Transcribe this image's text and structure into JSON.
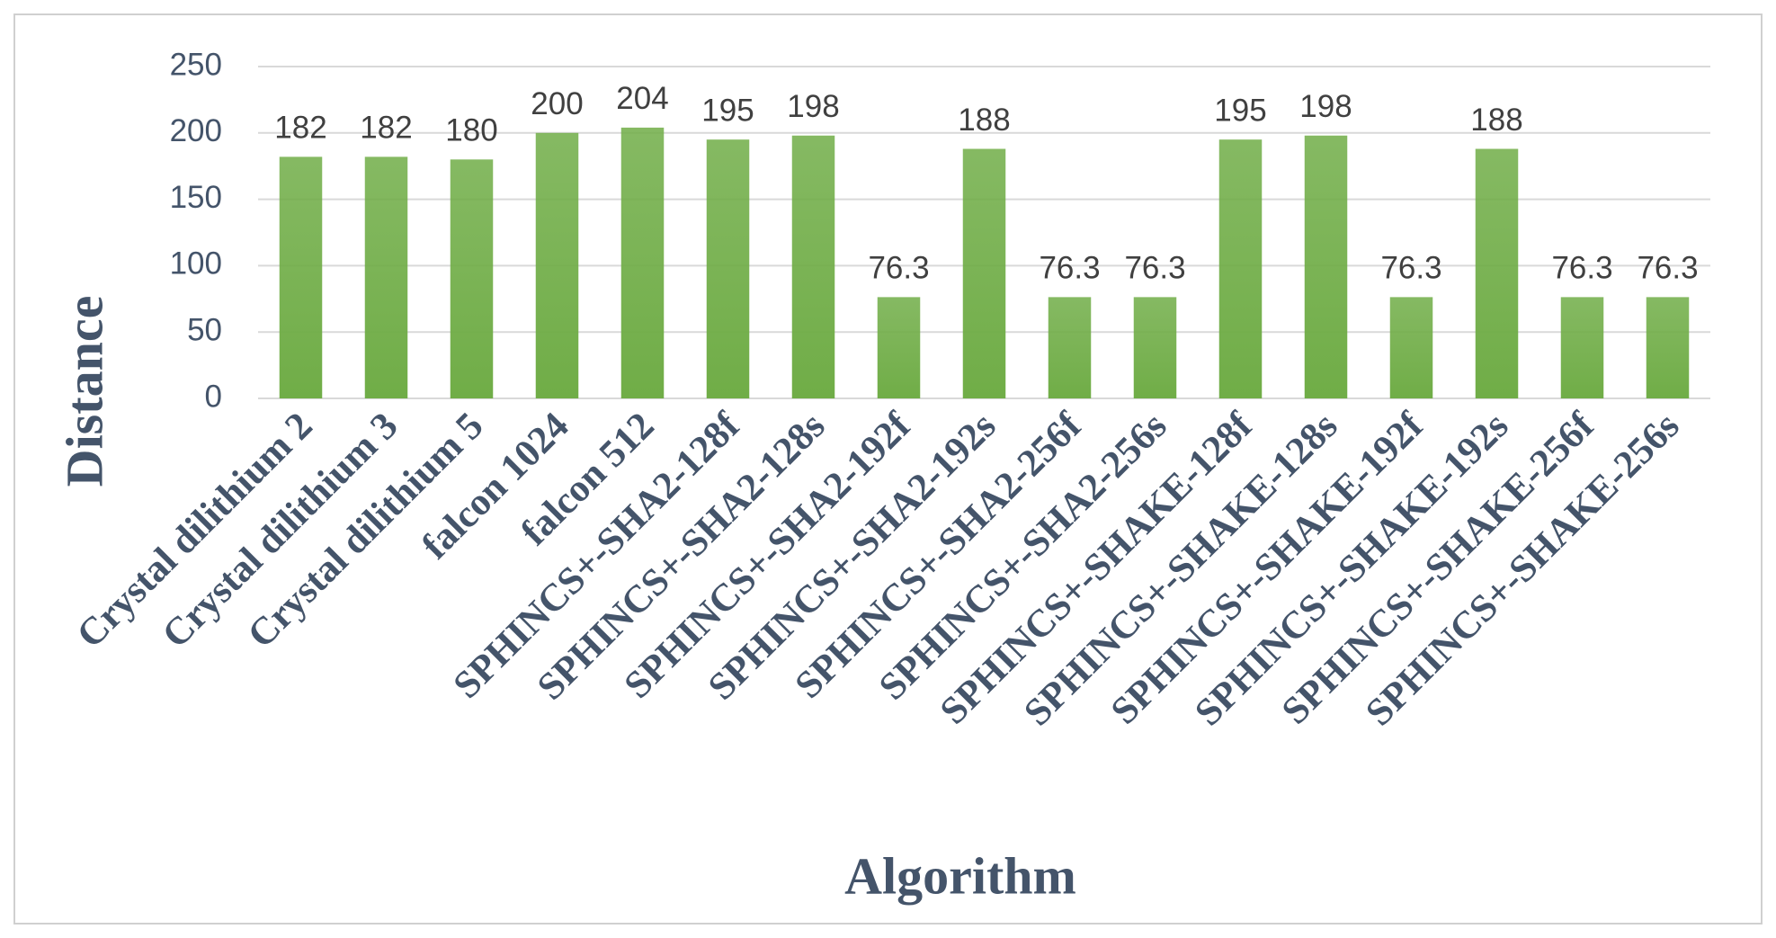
{
  "chart_data": {
    "type": "bar",
    "x_label": "Algorithm",
    "y_label": "Distance",
    "categories": [
      "Crystal dilithium 2",
      "Crystal dilithium 3",
      "Crystal dilithium 5",
      "falcon 1024",
      "falcon 512",
      "SPHINCS+-SHA2-128f",
      "SPHINCS+-SHA2-128s",
      "SPHINCS+-SHA2-192f",
      "SPHINCS+-SHA2-192s",
      "SPHINCS+-SHA2-256f",
      "SPHINCS+-SHA2-256s",
      "SPHINCS+-SHAKE-128f",
      "SPHINCS+-SHAKE-128s",
      "SPHINCS+-SHAKE-192f",
      "SPHINCS+-SHAKE-192s",
      "SPHINCS+-SHAKE-256f",
      "SPHINCS+-SHAKE-256s"
    ],
    "values": [
      182,
      182,
      180,
      200,
      204,
      195,
      198,
      76.3,
      188,
      76.3,
      76.3,
      195,
      198,
      76.3,
      188,
      76.3,
      76.3
    ],
    "color": "#70ad47",
    "ylim": [
      0,
      250
    ],
    "yticks": [
      0,
      50,
      100,
      150,
      200,
      250
    ],
    "grid": true
  }
}
